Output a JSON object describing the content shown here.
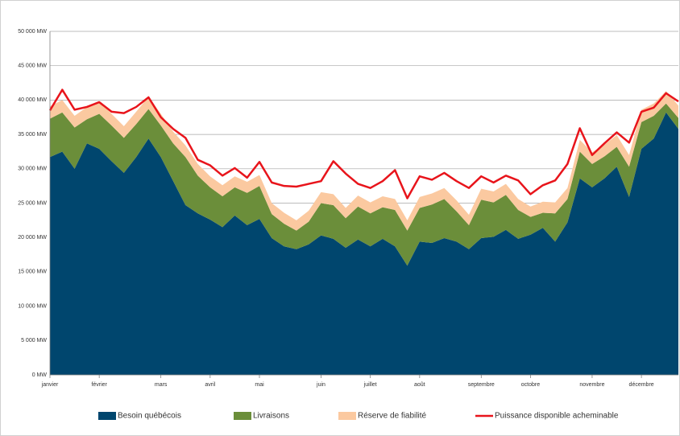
{
  "chart_data": {
    "type": "stacked-area",
    "categories": [
      "janvier",
      null,
      null,
      null,
      "février",
      null,
      null,
      null,
      null,
      "mars",
      null,
      null,
      null,
      "avril",
      null,
      null,
      null,
      "mai",
      null,
      null,
      null,
      null,
      "juin",
      null,
      null,
      null,
      "juillet",
      null,
      null,
      null,
      "août",
      null,
      null,
      null,
      null,
      "septembre",
      null,
      null,
      null,
      "octobre",
      null,
      null,
      null,
      null,
      "novembre",
      null,
      null,
      null,
      "décembre",
      null,
      null,
      null
    ],
    "series": [
      {
        "name": "Besoin québécois",
        "type": "area",
        "color": "#00466e",
        "values": [
          31700,
          32500,
          30000,
          33700,
          32900,
          31100,
          29400,
          31700,
          34400,
          31700,
          28200,
          24700,
          23500,
          22600,
          21500,
          23200,
          21800,
          22700,
          19900,
          18700,
          18300,
          19000,
          20300,
          19800,
          18500,
          19700,
          18700,
          19800,
          18700,
          15900,
          19400,
          19200,
          19900,
          19400,
          18300,
          19900,
          20100,
          21100,
          19800,
          20400,
          21400,
          19400,
          22200,
          28600,
          27300,
          28600,
          30300,
          25900,
          32900,
          34400,
          38200,
          35800
        ]
      },
      {
        "name": "Livraisons",
        "type": "area",
        "color": "#6b8e3a",
        "values": [
          5600,
          5700,
          6000,
          3500,
          5100,
          5200,
          5100,
          4800,
          4300,
          4600,
          5500,
          7000,
          5500,
          4700,
          4500,
          4100,
          4700,
          4800,
          3500,
          3300,
          2700,
          3300,
          4700,
          4900,
          4300,
          4800,
          4800,
          4600,
          5300,
          5100,
          4900,
          5600,
          5700,
          4400,
          3500,
          5600,
          5000,
          5100,
          4200,
          2600,
          2200,
          4100,
          3400,
          3900,
          3400,
          3200,
          2900,
          4400,
          3900,
          3300,
          1300,
          1600
        ]
      },
      {
        "name": "Réserve de fiabilité",
        "type": "area",
        "color": "#fbc9a0",
        "values": [
          1800,
          1800,
          1700,
          1800,
          1800,
          1700,
          1700,
          1800,
          1800,
          1700,
          1700,
          1700,
          1700,
          1600,
          1600,
          1600,
          1600,
          1600,
          1600,
          1600,
          1500,
          1600,
          1600,
          1600,
          1500,
          1600,
          1600,
          1600,
          1600,
          1500,
          1600,
          1600,
          1600,
          1600,
          1500,
          1600,
          1600,
          1600,
          1600,
          1500,
          1600,
          1600,
          1600,
          1700,
          1700,
          1700,
          1700,
          1700,
          1800,
          1800,
          1800,
          1800
        ]
      },
      {
        "name": "Puissance disponible acheminable",
        "type": "line",
        "color": "#e8141b",
        "values": [
          38500,
          41500,
          38600,
          39000,
          39700,
          38300,
          38100,
          39000,
          40400,
          37500,
          35800,
          34500,
          31300,
          30500,
          29000,
          30100,
          28700,
          31000,
          28000,
          27500,
          27400,
          27800,
          28200,
          31100,
          29300,
          27800,
          27200,
          28200,
          29800,
          25700,
          28900,
          28400,
          29400,
          28200,
          27200,
          28900,
          28000,
          29000,
          28300,
          26300,
          27600,
          28300,
          30700,
          35900,
          32000,
          33700,
          35300,
          33800,
          38300,
          38900,
          41000,
          39800
        ]
      }
    ],
    "ylim": [
      0,
      50000
    ],
    "yticks": [
      {
        "value": 0,
        "label": "0 MW"
      },
      {
        "value": 5000,
        "label": "5 000 MW"
      },
      {
        "value": 10000,
        "label": "10 000 MW"
      },
      {
        "value": 15000,
        "label": "15 000 MW"
      },
      {
        "value": 20000,
        "label": "20 000 MW"
      },
      {
        "value": 25000,
        "label": "25 000 MW"
      },
      {
        "value": 30000,
        "label": "30 000 MW"
      },
      {
        "value": 35000,
        "label": "35 000 MW"
      },
      {
        "value": 40000,
        "label": "40 000 MW"
      },
      {
        "value": 45000,
        "label": "45 000 MW"
      },
      {
        "value": 50000,
        "label": "50 000 MW"
      }
    ],
    "grid": true
  }
}
